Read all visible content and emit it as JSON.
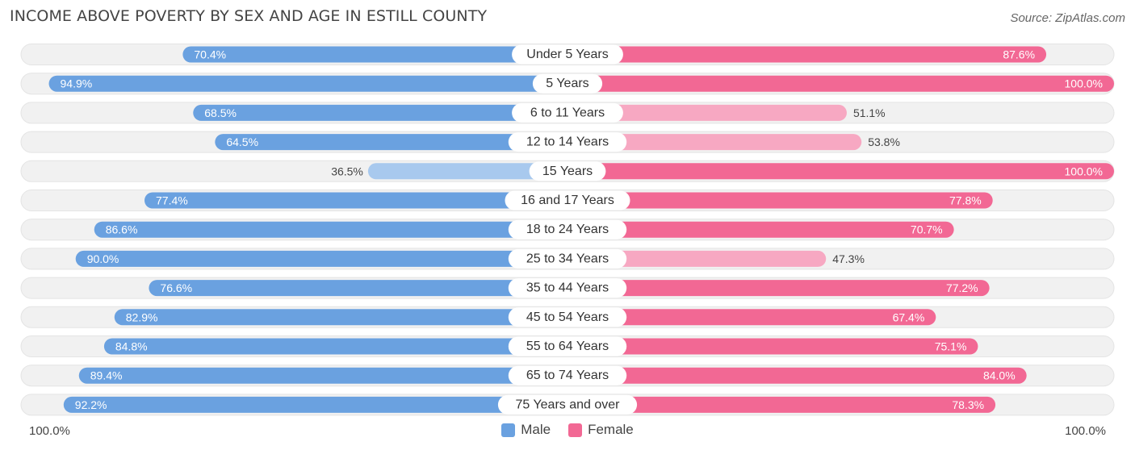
{
  "title": "INCOME ABOVE POVERTY BY SEX AND AGE IN ESTILL COUNTY",
  "source": "Source: ZipAtlas.com",
  "colors": {
    "male_dark": "#6aa1e0",
    "male_light": "#a8c9ee",
    "female_dark": "#f26894",
    "female_light": "#f7a8c2",
    "track": "#f1f1f1"
  },
  "chart_data": {
    "type": "bar",
    "orientation": "diverging-horizontal",
    "title": "INCOME ABOVE POVERTY BY SEX AND AGE IN ESTILL COUNTY",
    "categories": [
      "Under 5 Years",
      "5 Years",
      "6 to 11 Years",
      "12 to 14 Years",
      "15 Years",
      "16 and 17 Years",
      "18 to 24 Years",
      "25 to 34 Years",
      "35 to 44 Years",
      "45 to 54 Years",
      "55 to 64 Years",
      "65 to 74 Years",
      "75 Years and over"
    ],
    "series": [
      {
        "name": "Male",
        "values": [
          70.4,
          94.9,
          68.5,
          64.5,
          36.5,
          77.4,
          86.6,
          90.0,
          76.6,
          82.9,
          84.8,
          89.4,
          92.2
        ],
        "labels": [
          "70.4%",
          "94.9%",
          "68.5%",
          "64.5%",
          "36.5%",
          "77.4%",
          "86.6%",
          "90.0%",
          "76.6%",
          "82.9%",
          "84.8%",
          "89.4%",
          "92.2%"
        ]
      },
      {
        "name": "Female",
        "values": [
          87.6,
          100.0,
          51.1,
          53.8,
          100.0,
          77.8,
          70.7,
          47.3,
          77.2,
          67.4,
          75.1,
          84.0,
          78.3
        ],
        "labels": [
          "87.6%",
          "100.0%",
          "51.1%",
          "53.8%",
          "100.0%",
          "77.8%",
          "70.7%",
          "47.3%",
          "77.2%",
          "67.4%",
          "75.1%",
          "84.0%",
          "78.3%"
        ]
      }
    ],
    "xlim": [
      0,
      100
    ],
    "axis_left_label": "100.0%",
    "axis_right_label": "100.0%",
    "legend": [
      "Male",
      "Female"
    ],
    "legend_position": "bottom-center"
  }
}
